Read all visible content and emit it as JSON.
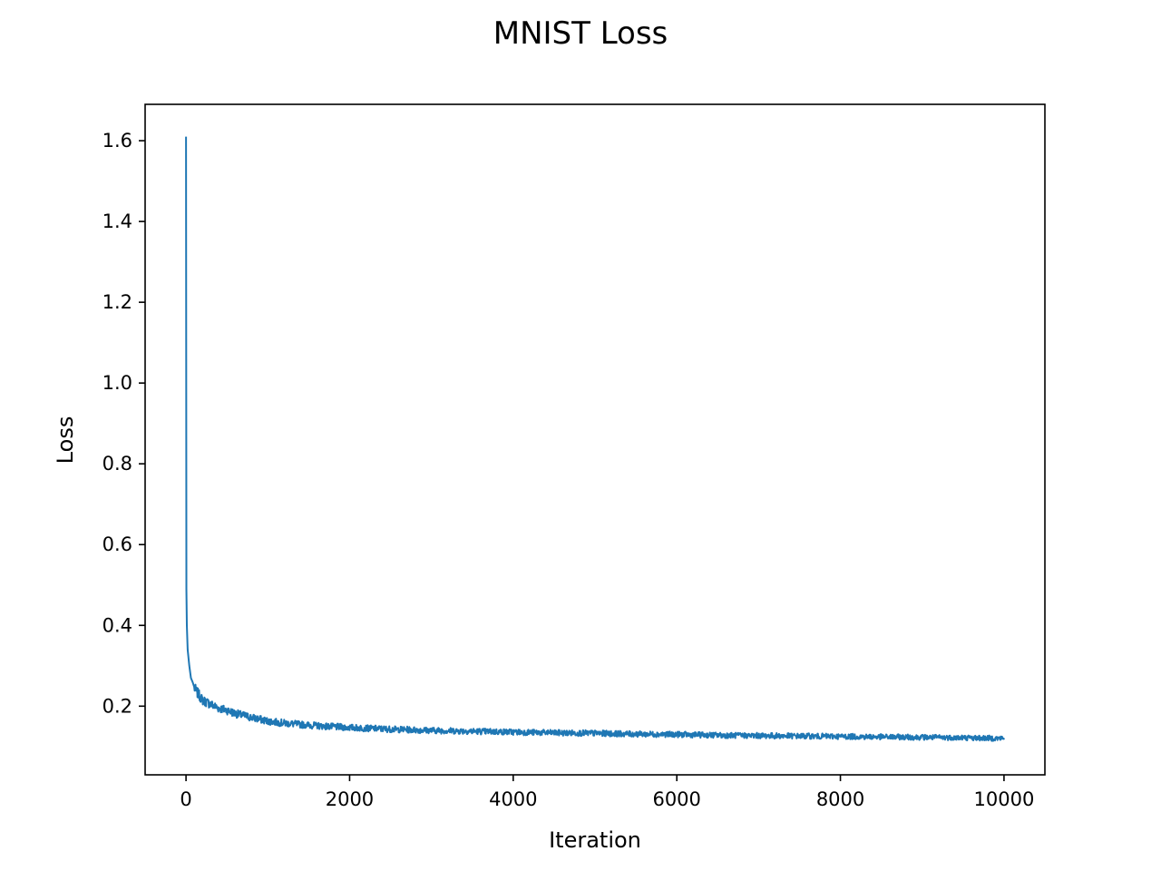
{
  "chart_data": {
    "type": "line",
    "title": "MNIST Loss",
    "xlabel": "Iteration",
    "ylabel": "Loss",
    "xlim": [
      -500,
      10500
    ],
    "ylim": [
      0.03,
      1.69
    ],
    "xticks": [
      0,
      2000,
      4000,
      6000,
      8000,
      10000
    ],
    "yticks": [
      0.2,
      0.4,
      0.6,
      0.8,
      1.0,
      1.2,
      1.4,
      1.6
    ],
    "xtick_labels": [
      "0",
      "2000",
      "4000",
      "6000",
      "8000",
      "10000"
    ],
    "ytick_labels": [
      "0.2",
      "0.4",
      "0.6",
      "0.8",
      "1.0",
      "1.2",
      "1.4",
      "1.6"
    ],
    "grid": false,
    "legend": "none",
    "series": [
      {
        "color": "#1f77b4",
        "x": [
          0,
          5,
          10,
          20,
          40,
          60,
          80,
          100,
          150,
          200,
          300,
          400,
          500,
          600,
          800,
          1000,
          1200,
          1500,
          1800,
          2000,
          2500,
          3000,
          3500,
          4000,
          4500,
          5000,
          5500,
          6000,
          6500,
          7000,
          7500,
          8000,
          8500,
          9000,
          9500,
          10000
        ],
        "y": [
          1.61,
          0.49,
          0.4,
          0.34,
          0.3,
          0.27,
          0.26,
          0.245,
          0.23,
          0.215,
          0.205,
          0.195,
          0.19,
          0.182,
          0.172,
          0.163,
          0.158,
          0.153,
          0.149,
          0.147,
          0.143,
          0.14,
          0.138,
          0.136,
          0.134,
          0.133,
          0.131,
          0.13,
          0.128,
          0.127,
          0.126,
          0.125,
          0.124,
          0.123,
          0.122,
          0.12
        ]
      }
    ]
  }
}
